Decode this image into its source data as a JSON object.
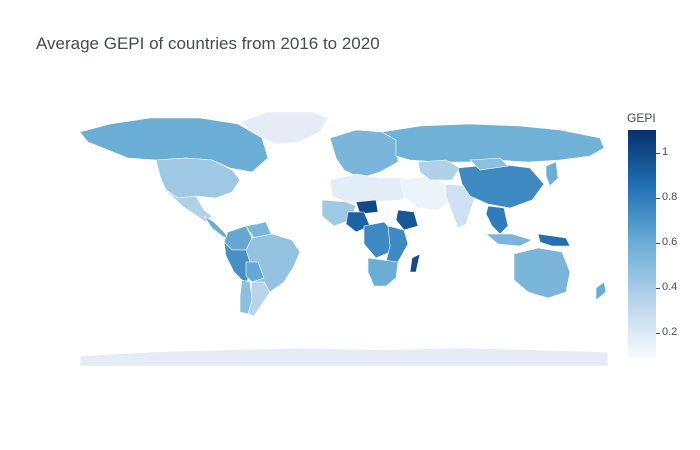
{
  "title": "Average GEPI of countries from 2016 to 2020",
  "colorbar": {
    "title": "GEPI",
    "ticks": [
      "1",
      "0.8",
      "0.6",
      "0.4",
      "0.2"
    ],
    "tick_values": [
      1,
      0.8,
      0.6,
      0.4,
      0.2
    ],
    "range": [
      0.09,
      1.1
    ]
  },
  "colors": {
    "land_no_data": "#e5ecf6",
    "scale": [
      "#f7fbff",
      "#c6dbef",
      "#6baed6",
      "#2171b5",
      "#08306b"
    ]
  },
  "regions": [
    {
      "name": "Greenland",
      "gepi": null
    },
    {
      "name": "Canada",
      "gepi": 0.6
    },
    {
      "name": "United States",
      "gepi": 0.45
    },
    {
      "name": "Mexico",
      "gepi": 0.4
    },
    {
      "name": "Central America",
      "gepi": 0.6
    },
    {
      "name": "Colombia",
      "gepi": 0.62
    },
    {
      "name": "Venezuela",
      "gepi": 0.55
    },
    {
      "name": "Peru",
      "gepi": 0.72
    },
    {
      "name": "Brazil",
      "gepi": 0.48
    },
    {
      "name": "Bolivia",
      "gepi": 0.62
    },
    {
      "name": "Argentina",
      "gepi": 0.38
    },
    {
      "name": "Chile",
      "gepi": 0.5
    },
    {
      "name": "Europe",
      "gepi": 0.55
    },
    {
      "name": "Russia",
      "gepi": 0.58
    },
    {
      "name": "North Africa",
      "gepi": 0.2
    },
    {
      "name": "West Africa",
      "gepi": 0.45
    },
    {
      "name": "Niger",
      "gepi": 1.0
    },
    {
      "name": "Nigeria",
      "gepi": 0.9
    },
    {
      "name": "Central Africa",
      "gepi": 0.75
    },
    {
      "name": "Ethiopia",
      "gepi": 0.95
    },
    {
      "name": "East Africa",
      "gepi": 0.75
    },
    {
      "name": "Southern Africa",
      "gepi": 0.6
    },
    {
      "name": "Madagascar",
      "gepi": 1.0
    },
    {
      "name": "Middle East",
      "gepi": 0.15
    },
    {
      "name": "Kazakhstan",
      "gepi": 0.4
    },
    {
      "name": "India",
      "gepi": 0.3
    },
    {
      "name": "China",
      "gepi": 0.75
    },
    {
      "name": "Mongolia",
      "gepi": 0.5
    },
    {
      "name": "Southeast Asia",
      "gepi": 0.8
    },
    {
      "name": "Indonesia",
      "gepi": 0.55
    },
    {
      "name": "Papua New Guinea",
      "gepi": 0.85
    },
    {
      "name": "Japan",
      "gepi": 0.6
    },
    {
      "name": "Australia",
      "gepi": 0.55
    },
    {
      "name": "New Zealand",
      "gepi": 0.6
    },
    {
      "name": "Antarctica",
      "gepi": null
    }
  ]
}
